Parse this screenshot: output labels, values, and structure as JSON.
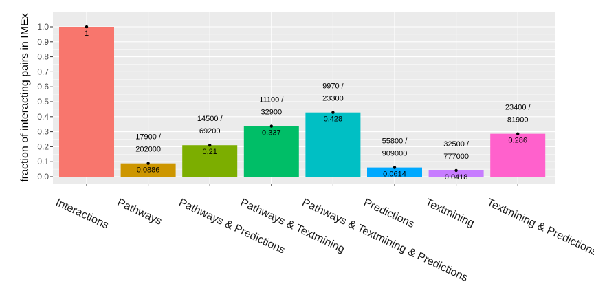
{
  "chart_data": {
    "type": "bar",
    "title": "",
    "xlabel": "",
    "ylabel": "fraction of interacting pairs in IMEx",
    "ylim": [
      0,
      1.0
    ],
    "yticks": [
      "0.0",
      "0.1",
      "0.2",
      "0.3",
      "0.4",
      "0.5",
      "0.6",
      "0.7",
      "0.8",
      "0.9",
      "1.0"
    ],
    "grid": true,
    "legend": "none",
    "categories": [
      "Interactions",
      "Pathways",
      "Pathways & Predictions",
      "Pathways & Textmining",
      "Pathways & Textmining & Predictions",
      "Predictions",
      "Textmining",
      "Textmining & Predictions"
    ],
    "values": [
      1,
      0.0886,
      0.21,
      0.337,
      0.428,
      0.0614,
      0.0418,
      0.286
    ],
    "value_labels": [
      "1",
      "0.0886",
      "0.21",
      "0.337",
      "0.428",
      "0.0614",
      "0.0418",
      "0.286"
    ],
    "count_labels": [
      [],
      [
        "17900 /",
        "202000"
      ],
      [
        "14500 /",
        "69200"
      ],
      [
        "11100 /",
        "32900"
      ],
      [
        "9970 /",
        "23300"
      ],
      [
        "55800 /",
        "909000"
      ],
      [
        "32500 /",
        "777000"
      ],
      [
        "23400 /",
        "81900"
      ]
    ],
    "colors": [
      "#F8766D",
      "#CD9600",
      "#7CAE00",
      "#00BE67",
      "#00BFC4",
      "#00A9FF",
      "#C77CFF",
      "#FF61CC"
    ],
    "panel_background": "#EBEBEB",
    "grid_color": "#FFFFFF"
  }
}
